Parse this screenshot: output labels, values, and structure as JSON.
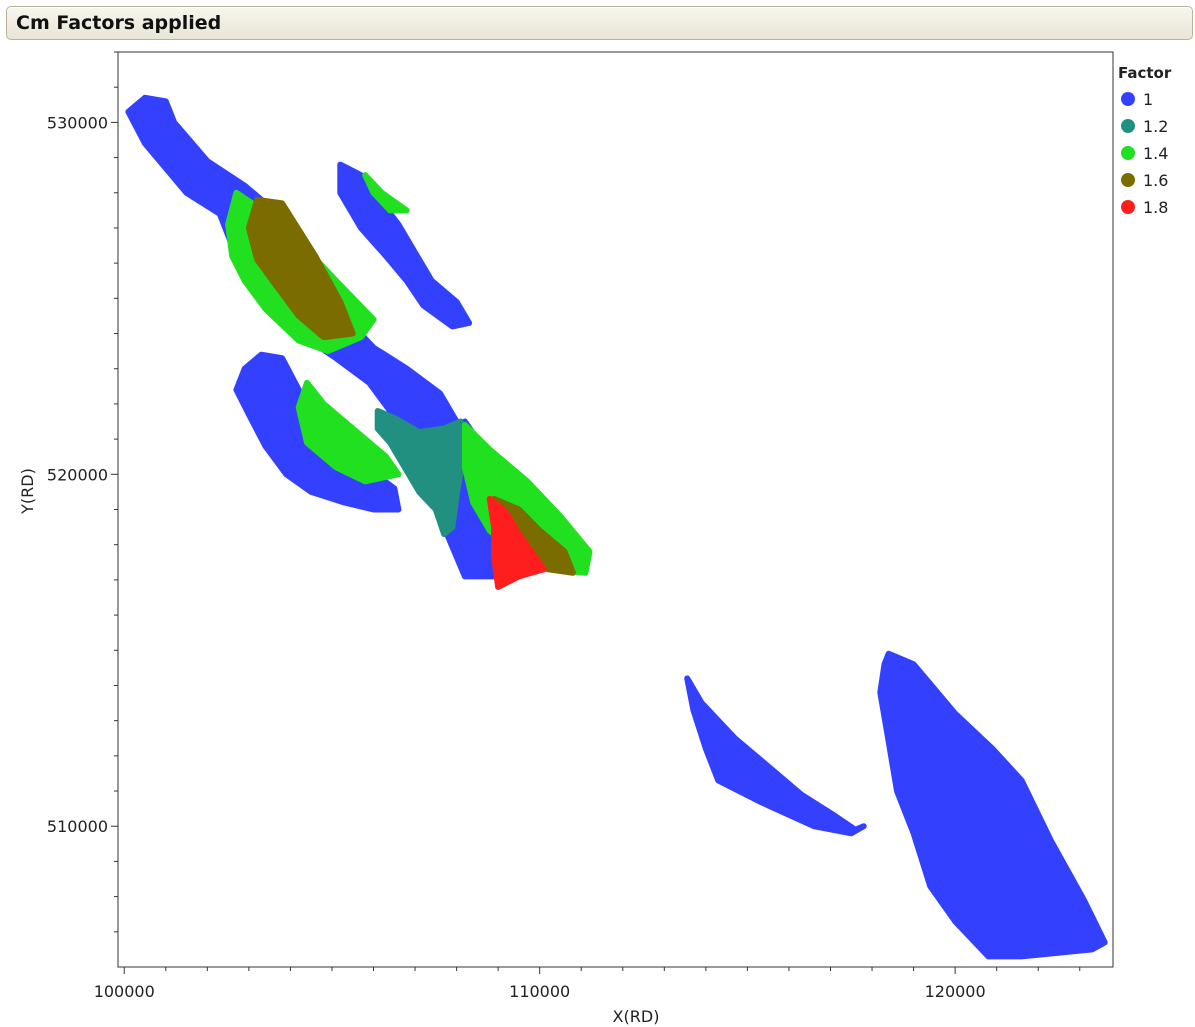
{
  "panel": {
    "title": "Cm Factors applied"
  },
  "chart_data": {
    "type": "scatter",
    "title": "",
    "xlabel": "X(RD)",
    "ylabel": "Y(RD)",
    "xlim": [
      99850,
      123800
    ],
    "ylim": [
      506000,
      532000
    ],
    "x_ticks": [
      100000,
      110000,
      120000
    ],
    "y_ticks": [
      510000,
      520000,
      530000
    ],
    "x_tick_labels": [
      "100000",
      "110000",
      "120000"
    ],
    "y_tick_labels": [
      "510000",
      "520000",
      "530000"
    ],
    "grid": false,
    "legend": {
      "title": "Factor",
      "position": "right"
    },
    "series": [
      {
        "name": "1",
        "color": "#3341ff",
        "regions": [
          [
            [
              100500,
              530700
            ],
            [
              101000,
              530600
            ],
            [
              101200,
              530000
            ],
            [
              102000,
              528900
            ],
            [
              102900,
              528200
            ],
            [
              104100,
              527000
            ],
            [
              104500,
              526200
            ],
            [
              105200,
              524600
            ],
            [
              106000,
              523600
            ],
            [
              106800,
              523000
            ],
            [
              107600,
              522300
            ],
            [
              108100,
              521300
            ],
            [
              107900,
              520900
            ],
            [
              107400,
              521100
            ],
            [
              106800,
              521300
            ],
            [
              106400,
              521800
            ],
            [
              105900,
              522600
            ],
            [
              105100,
              523300
            ],
            [
              104600,
              523700
            ],
            [
              103900,
              524500
            ],
            [
              103000,
              525600
            ],
            [
              102600,
              526500
            ],
            [
              102300,
              527400
            ],
            [
              101500,
              528000
            ],
            [
              100500,
              529400
            ],
            [
              100100,
              530300
            ]
          ],
          [
            [
              105200,
              528800
            ],
            [
              105700,
              528500
            ],
            [
              106600,
              527100
            ],
            [
              107000,
              526300
            ],
            [
              107400,
              525500
            ],
            [
              108000,
              524900
            ],
            [
              108300,
              524300
            ],
            [
              107900,
              524200
            ],
            [
              107200,
              524800
            ],
            [
              106800,
              525500
            ],
            [
              106300,
              526200
            ],
            [
              105700,
              527000
            ],
            [
              105200,
              528000
            ]
          ],
          [
            [
              103800,
              523300
            ],
            [
              104200,
              522400
            ],
            [
              104900,
              521200
            ],
            [
              105700,
              520300
            ],
            [
              106500,
              519600
            ],
            [
              106600,
              519000
            ],
            [
              106000,
              519000
            ],
            [
              105300,
              519200
            ],
            [
              104500,
              519500
            ],
            [
              103900,
              520000
            ],
            [
              103400,
              520800
            ],
            [
              103000,
              521700
            ],
            [
              102700,
              522400
            ],
            [
              102900,
              523000
            ],
            [
              103300,
              523400
            ]
          ],
          [
            [
              108200,
              521500
            ],
            [
              108000,
              520800
            ],
            [
              107800,
              519700
            ],
            [
              107700,
              518500
            ],
            [
              108200,
              517100
            ],
            [
              109200,
              517100
            ],
            [
              109300,
              518100
            ],
            [
              109000,
              519000
            ],
            [
              108800,
              520000
            ],
            [
              108600,
              520800
            ]
          ],
          [
            [
              113550,
              514200
            ],
            [
              113900,
              513500
            ],
            [
              114700,
              512500
            ],
            [
              115600,
              511600
            ],
            [
              116300,
              510900
            ],
            [
              117100,
              510300
            ],
            [
              117600,
              509900
            ],
            [
              117800,
              510000
            ],
            [
              117500,
              509800
            ],
            [
              116600,
              510000
            ],
            [
              115300,
              510700
            ],
            [
              114300,
              511300
            ],
            [
              114000,
              512200
            ],
            [
              113700,
              513300
            ]
          ],
          [
            [
              118400,
              514900
            ],
            [
              119000,
              514600
            ],
            [
              120000,
              513200
            ],
            [
              120900,
              512200
            ],
            [
              121600,
              511300
            ],
            [
              122300,
              509600
            ],
            [
              123100,
              507900
            ],
            [
              123600,
              506700
            ],
            [
              123300,
              506500
            ],
            [
              121600,
              506300
            ],
            [
              120800,
              506300
            ],
            [
              120000,
              507300
            ],
            [
              119400,
              508300
            ],
            [
              119000,
              509800
            ],
            [
              118600,
              511000
            ],
            [
              118400,
              512400
            ],
            [
              118200,
              513800
            ],
            [
              118300,
              514600
            ]
          ]
        ]
      },
      {
        "name": "1.2",
        "color": "#219080",
        "regions": [
          [
            [
              106100,
              521800
            ],
            [
              106500,
              521600
            ],
            [
              107100,
              521200
            ],
            [
              107700,
              521300
            ],
            [
              108100,
              521500
            ],
            [
              108200,
              520800
            ],
            [
              108000,
              519400
            ],
            [
              107900,
              518500
            ],
            [
              107700,
              518300
            ],
            [
              107500,
              519000
            ],
            [
              107100,
              519500
            ],
            [
              106700,
              520300
            ],
            [
              106400,
              520900
            ],
            [
              106100,
              521300
            ]
          ]
        ]
      },
      {
        "name": "1.4",
        "color": "#20e020",
        "regions": [
          [
            [
              102700,
              528000
            ],
            [
              103200,
              527600
            ],
            [
              104300,
              526500
            ],
            [
              105100,
              525500
            ],
            [
              106000,
              524400
            ],
            [
              105700,
              523900
            ],
            [
              104900,
              523500
            ],
            [
              104200,
              523800
            ],
            [
              103400,
              524700
            ],
            [
              102900,
              525500
            ],
            [
              102600,
              526200
            ],
            [
              102500,
              527100
            ]
          ],
          [
            [
              105800,
              528500
            ],
            [
              106200,
              528000
            ],
            [
              106800,
              527500
            ],
            [
              106400,
              527500
            ],
            [
              106000,
              528000
            ]
          ],
          [
            [
              104400,
              522600
            ],
            [
              104800,
              522000
            ],
            [
              105600,
              521200
            ],
            [
              106300,
              520500
            ],
            [
              106600,
              520000
            ],
            [
              105800,
              519800
            ],
            [
              105100,
              520200
            ],
            [
              104400,
              520900
            ],
            [
              104200,
              521900
            ]
          ],
          [
            [
              108200,
              521400
            ],
            [
              108800,
              520700
            ],
            [
              109700,
              519800
            ],
            [
              110500,
              518800
            ],
            [
              111200,
              517800
            ],
            [
              111100,
              517200
            ],
            [
              110300,
              517300
            ],
            [
              109500,
              517700
            ],
            [
              108800,
              518400
            ],
            [
              108400,
              519200
            ],
            [
              108200,
              520200
            ]
          ]
        ]
      },
      {
        "name": "1.6",
        "color": "#7b6c00",
        "regions": [
          [
            [
              103200,
              527800
            ],
            [
              103800,
              527700
            ],
            [
              104600,
              526200
            ],
            [
              105200,
              524900
            ],
            [
              105500,
              524000
            ],
            [
              104800,
              523900
            ],
            [
              104200,
              524500
            ],
            [
              103700,
              525300
            ],
            [
              103200,
              526100
            ],
            [
              103000,
              527000
            ]
          ],
          [
            [
              108900,
              519300
            ],
            [
              109500,
              519000
            ],
            [
              110000,
              518400
            ],
            [
              110600,
              517800
            ],
            [
              110800,
              517200
            ],
            [
              110200,
              517300
            ],
            [
              109600,
              517700
            ],
            [
              109200,
              518300
            ]
          ]
        ]
      },
      {
        "name": "1.8",
        "color": "#ff1e1e",
        "regions": [
          [
            [
              108800,
              519300
            ],
            [
              109200,
              518900
            ],
            [
              109500,
              518300
            ],
            [
              109800,
              517800
            ],
            [
              110100,
              517300
            ],
            [
              109500,
              517100
            ],
            [
              109000,
              516800
            ],
            [
              108900,
              517700
            ],
            [
              108900,
              518500
            ]
          ]
        ]
      }
    ]
  }
}
